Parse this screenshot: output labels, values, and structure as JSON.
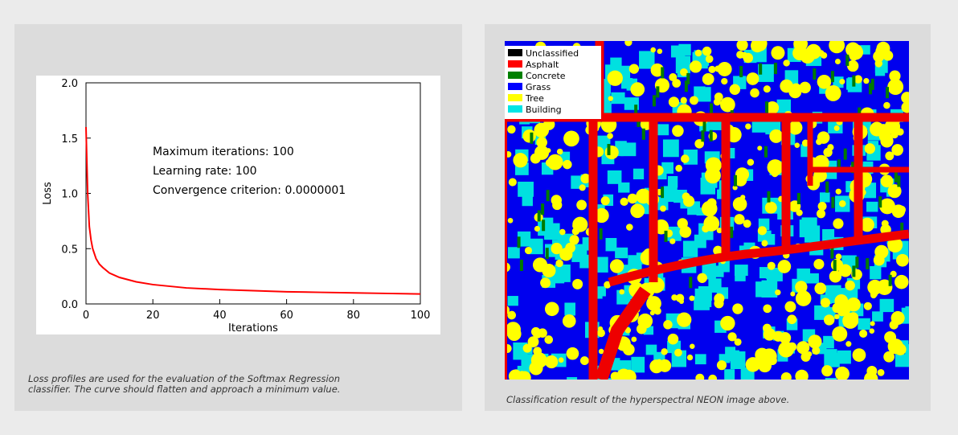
{
  "chart_data": {
    "type": "line",
    "xlabel": "Iterations",
    "ylabel": "Loss",
    "annotations": [
      "Maximum iterations: 100",
      "Learning rate: 100",
      "Convergence criterion: 0.0000001"
    ],
    "x": [
      0,
      0.5,
      1,
      1.5,
      2,
      3,
      4,
      5,
      7,
      10,
      15,
      20,
      30,
      40,
      50,
      60,
      70,
      80,
      90,
      100
    ],
    "values": [
      1.6,
      1.0,
      0.7,
      0.58,
      0.5,
      0.41,
      0.36,
      0.33,
      0.28,
      0.24,
      0.2,
      0.175,
      0.145,
      0.13,
      0.12,
      0.11,
      0.105,
      0.1,
      0.095,
      0.09
    ],
    "color": "#ff0000",
    "xlim": [
      0,
      100
    ],
    "ylim": [
      0,
      2
    ],
    "xticks": [
      0,
      20,
      40,
      60,
      80,
      100
    ],
    "yticks": [
      {
        "value": 0,
        "label": "0.0"
      },
      0.5,
      {
        "value": 1,
        "label": "1.0"
      },
      1.5,
      {
        "value": 2,
        "label": "2.0"
      }
    ]
  },
  "left_caption": [
    "Loss profiles are used for the evaluation of the Softmax Regression",
    "classifier. The curve should flatten and approach a minimum value."
  ],
  "map_legend": [
    {
      "label": "Unclassified",
      "color": "#000000"
    },
    {
      "label": "Asphalt",
      "color": "#ff0000"
    },
    {
      "label": "Concrete",
      "color": "#008000"
    },
    {
      "label": "Grass",
      "color": "#0000ff"
    },
    {
      "label": "Tree",
      "color": "#ffff00"
    },
    {
      "label": "Building",
      "color": "#00e5e5"
    }
  ],
  "right_caption": "Classification result of the hyperspectral NEON image above."
}
